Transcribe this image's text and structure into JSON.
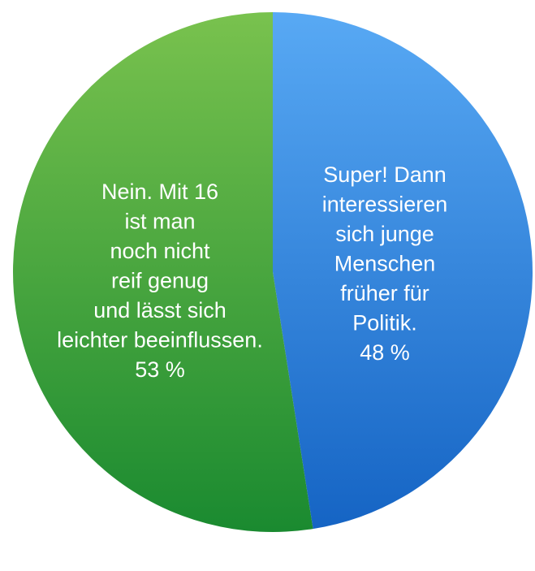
{
  "chart_data": {
    "type": "pie",
    "slices": [
      {
        "label_lines": [
          "Super! Dann",
          "interessieren",
          "sich junge",
          "Menschen",
          "früher für",
          "Politik."
        ],
        "value_label": "48 %",
        "value": 48,
        "color_top": "#58a9f4",
        "color_bottom": "#1564c4"
      },
      {
        "label_lines": [
          "Nein. Mit 16",
          "ist man",
          "noch nicht",
          "reif genug",
          "und lässt sich",
          "leichter beeinflussen."
        ],
        "value_label": "53 %",
        "value": 53,
        "color_top": "#79c24e",
        "color_bottom": "#1a8a30"
      }
    ],
    "start_angle": "12 o'clock",
    "direction": "clockwise",
    "legend": "none"
  }
}
